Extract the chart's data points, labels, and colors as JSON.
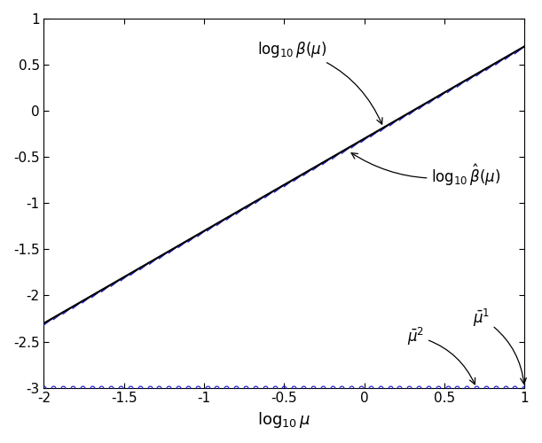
{
  "xlim": [
    -2,
    1
  ],
  "ylim": [
    -3,
    1
  ],
  "xlabel": "$\\log_{10} \\mu$",
  "xticks": [
    -2,
    -1.5,
    -1,
    -0.5,
    0,
    0.5,
    1
  ],
  "yticks": [
    -3,
    -2.5,
    -2,
    -1.5,
    -1,
    -0.5,
    0,
    0.5,
    1
  ],
  "beta_color": "#000000",
  "beta_hat_color": "#1111CC",
  "circle_color": "#1111CC",
  "n_segments": 50,
  "tau": 0.75,
  "log_mu_min": -2,
  "log_mu_max": 1,
  "y_floor": -3,
  "figsize": [
    6.11,
    5.0
  ],
  "dpi": 100
}
